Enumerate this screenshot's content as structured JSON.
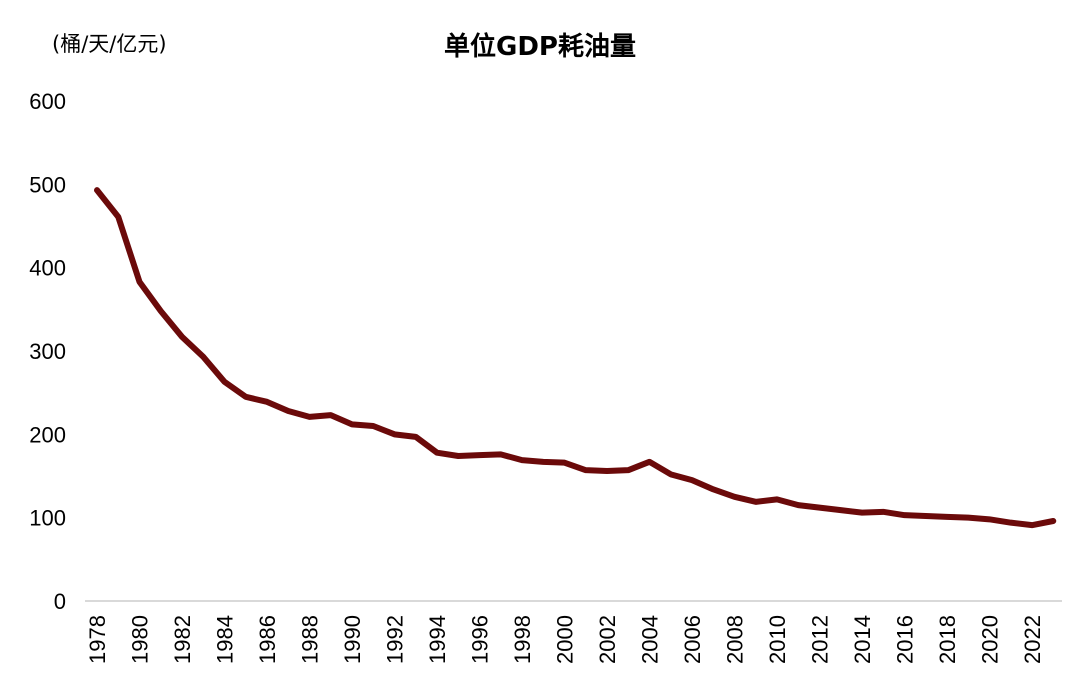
{
  "chart_data": {
    "type": "line",
    "title": "单位GDP耗油量",
    "ylabel": "(桶/天/亿元)",
    "xlabel": "",
    "ylim": [
      0,
      600
    ],
    "yticks": [
      0,
      100,
      200,
      300,
      400,
      500,
      600
    ],
    "xticks": [
      1978,
      1980,
      1982,
      1984,
      1986,
      1988,
      1990,
      1992,
      1994,
      1996,
      1998,
      2000,
      2002,
      2004,
      2006,
      2008,
      2010,
      2012,
      2014,
      2016,
      2018,
      2020,
      2022
    ],
    "grid": false,
    "color": "#6b0a0a",
    "x": [
      1978,
      1979,
      1980,
      1981,
      1982,
      1983,
      1984,
      1985,
      1986,
      1987,
      1988,
      1989,
      1990,
      1991,
      1992,
      1993,
      1994,
      1995,
      1996,
      1997,
      1998,
      1999,
      2000,
      2001,
      2002,
      2003,
      2004,
      2005,
      2006,
      2007,
      2008,
      2009,
      2010,
      2011,
      2012,
      2013,
      2014,
      2015,
      2016,
      2017,
      2018,
      2019,
      2020,
      2021,
      2022,
      2023
    ],
    "values": [
      493,
      461,
      383,
      348,
      317,
      293,
      263,
      245,
      239,
      228,
      221,
      223,
      212,
      210,
      200,
      197,
      178,
      174,
      175,
      176,
      169,
      167,
      166,
      157,
      156,
      157,
      167,
      152,
      145,
      134,
      125,
      119,
      122,
      115,
      112,
      109,
      106,
      107,
      103,
      102,
      101,
      100,
      98,
      94,
      91,
      96
    ]
  }
}
